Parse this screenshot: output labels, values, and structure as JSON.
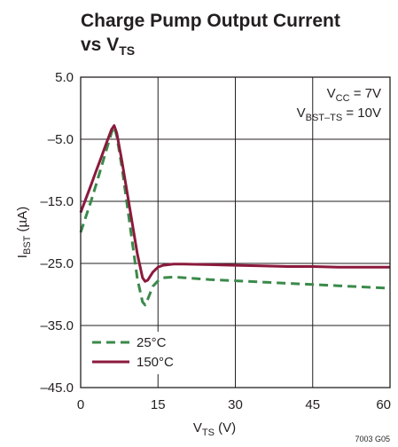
{
  "chart_data": {
    "type": "line",
    "title": {
      "line1": "Charge Pump Output Current",
      "line2_main": "vs V",
      "line2_sub": "TS"
    },
    "xlabel": {
      "main": "V",
      "sub": "TS",
      "rest": " (V)"
    },
    "ylabel": {
      "main": "I",
      "sub": "BST",
      "rest": " (µA)"
    },
    "xlim": [
      0,
      60
    ],
    "ylim": [
      -45,
      5
    ],
    "xticks": [
      0,
      15,
      30,
      45,
      60
    ],
    "xtick_labels": [
      "0",
      "15",
      "30",
      "45",
      "60"
    ],
    "yticks": [
      5,
      -5,
      -15,
      -25,
      -35,
      -45
    ],
    "ytick_labels": [
      "5.0",
      "–5.0",
      "–15.0",
      "–25.0",
      "–35.0",
      "–45.0"
    ],
    "grid": true,
    "annotations": [
      {
        "main": "V",
        "sub": "CC",
        "rest": " = 7V"
      },
      {
        "main": "V",
        "sub": "BST–TS",
        "rest": " = 10V"
      }
    ],
    "legend_position": "bottom-left",
    "series": [
      {
        "name": "25°C",
        "color": "#3a8a4a",
        "dash": "dashed",
        "x": [
          0,
          1,
          2,
          3,
          4,
          5,
          6,
          6.5,
          7,
          8,
          9,
          10,
          11,
          12,
          12.5,
          13,
          14,
          15,
          16,
          18,
          20,
          25,
          30,
          35,
          40,
          45,
          50,
          55,
          60
        ],
        "y": [
          -20,
          -17.5,
          -15,
          -12.3,
          -9.5,
          -6.7,
          -3.9,
          -3.0,
          -4.5,
          -9.5,
          -15.5,
          -21.5,
          -27.5,
          -31.2,
          -31.7,
          -30.8,
          -28.7,
          -27.8,
          -27.3,
          -27.2,
          -27.3,
          -27.6,
          -27.8,
          -28.0,
          -28.2,
          -28.4,
          -28.6,
          -28.8,
          -29.0
        ]
      },
      {
        "name": "150°C",
        "color": "#8b1a3c",
        "dash": "solid",
        "x": [
          0,
          1,
          2,
          3,
          4,
          5,
          6,
          6.5,
          7,
          8,
          9,
          10,
          11,
          12,
          12.5,
          13,
          14,
          15,
          16,
          18,
          20,
          25,
          30,
          35,
          40,
          45,
          50,
          55,
          60
        ],
        "y": [
          -16.8,
          -14.6,
          -12.4,
          -10.1,
          -7.9,
          -5.6,
          -3.4,
          -2.8,
          -4.0,
          -8.5,
          -13.5,
          -18.5,
          -23.5,
          -27.3,
          -27.9,
          -27.7,
          -26.4,
          -25.6,
          -25.3,
          -25.1,
          -25.1,
          -25.2,
          -25.3,
          -25.4,
          -25.5,
          -25.5,
          -25.6,
          -25.6,
          -25.6
        ]
      }
    ]
  },
  "figure_id": "7003 G05"
}
